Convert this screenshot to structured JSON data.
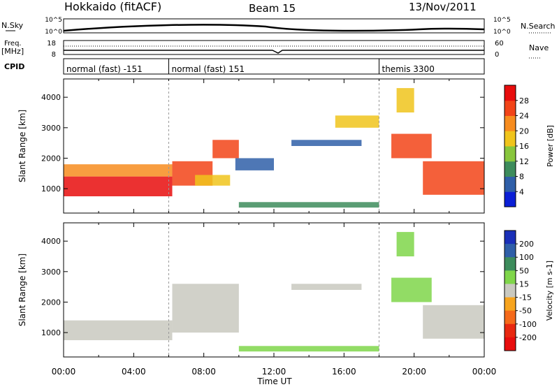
{
  "header": {
    "station": "Hokkaido (fitACF)",
    "beam": "Beam 15",
    "date": "13/Nov/2011"
  },
  "side_labels": {
    "n_sky": "N.Sky",
    "freq_1": "Freq.",
    "freq_2": "[MHz]",
    "cpid": "CPID",
    "n_search": "N.Search",
    "nave": "Nave"
  },
  "strip_ticks": {
    "nsky_top": "10^5",
    "nsky_bottom": "10^0",
    "nsearch_top": "10^5",
    "nsearch_bottom": "10^0",
    "freq_top": "18",
    "freq_bottom": "8",
    "nave_top": "60",
    "nave_bottom": "0"
  },
  "cpid_segments": [
    {
      "label": "normal (fast) -151",
      "start_hour": 0
    },
    {
      "label": "normal (fast) 151",
      "start_hour": 6
    },
    {
      "label": "themis 3300",
      "start_hour": 18
    }
  ],
  "chart_data": [
    {
      "type": "heatmap",
      "quantity": "Power",
      "xlabel": "Time UT",
      "ylabel": "Slant Range [km]",
      "xticks": [
        "00:00",
        "04:00",
        "08:00",
        "12:00",
        "16:00",
        "20:00",
        "00:00"
      ],
      "xlim_hours": [
        0,
        24
      ],
      "yticks": [
        1000,
        2000,
        3000,
        4000
      ],
      "ylim": [
        200,
        4600
      ],
      "colorbar": {
        "label": "Power [dB]",
        "ticks": [
          4,
          8,
          12,
          16,
          20,
          24,
          28
        ],
        "colors": [
          "#0b1fd6",
          "#2f5fa8",
          "#3d8c5c",
          "#88c63d",
          "#f0c41c",
          "#f78c1e",
          "#f24418",
          "#e80d0d"
        ]
      },
      "regions": [
        {
          "t0": 0,
          "t1": 6.2,
          "r0": 750,
          "r1": 1400,
          "value": 28
        },
        {
          "t0": 0,
          "t1": 6.2,
          "r0": 1400,
          "r1": 1800,
          "value": 20
        },
        {
          "t0": 6.2,
          "t1": 8.5,
          "r0": 1100,
          "r1": 1900,
          "value": 26
        },
        {
          "t0": 8.5,
          "t1": 10,
          "r0": 2000,
          "r1": 2600,
          "value": 26
        },
        {
          "t0": 7.5,
          "t1": 9.5,
          "r0": 1100,
          "r1": 1450,
          "value": 16
        },
        {
          "t0": 9.8,
          "t1": 12,
          "r0": 1600,
          "r1": 2000,
          "value": 6
        },
        {
          "t0": 13,
          "t1": 17,
          "r0": 2400,
          "r1": 2600,
          "value": 6
        },
        {
          "t0": 15.5,
          "t1": 18,
          "r0": 3000,
          "r1": 3400,
          "value": 16
        },
        {
          "t0": 10,
          "t1": 18,
          "r0": 380,
          "r1": 560,
          "value": 8
        },
        {
          "t0": 20.5,
          "t1": 24,
          "r0": 800,
          "r1": 1900,
          "value": 26
        },
        {
          "t0": 18.7,
          "t1": 21,
          "r0": 2000,
          "r1": 2800,
          "value": 26
        },
        {
          "t0": 19,
          "t1": 20,
          "r0": 3500,
          "r1": 4300,
          "value": 18
        }
      ]
    },
    {
      "type": "heatmap",
      "quantity": "Velocity",
      "xlabel": "Time UT",
      "ylabel": "Slant Range [km]",
      "xticks": [
        "00:00",
        "04:00",
        "08:00",
        "12:00",
        "16:00",
        "20:00",
        "00:00"
      ],
      "xlim_hours": [
        0,
        24
      ],
      "yticks": [
        1000,
        2000,
        3000,
        4000
      ],
      "ylim": [
        200,
        4600
      ],
      "colorbar": {
        "label": "Velocity [m s-1]",
        "ticks": [
          200,
          100,
          50,
          15,
          -15,
          -50,
          -100,
          -200
        ],
        "colors": [
          "#1a2fb8",
          "#2f5fa8",
          "#3d8c5c",
          "#7fd64a",
          "#c9c9c0",
          "#f7a41e",
          "#f56a1a",
          "#e82810",
          "#e80d0d"
        ]
      },
      "regions": [
        {
          "t0": 0,
          "t1": 6.2,
          "r0": 750,
          "r1": 1400,
          "value": 0
        },
        {
          "t0": 6.2,
          "t1": 10,
          "r0": 1000,
          "r1": 2600,
          "value": 0
        },
        {
          "t0": 13,
          "t1": 17,
          "r0": 2400,
          "r1": 2600,
          "value": 0
        },
        {
          "t0": 10,
          "t1": 18,
          "r0": 380,
          "r1": 560,
          "value": 20
        },
        {
          "t0": 20.5,
          "t1": 24,
          "r0": 800,
          "r1": 1900,
          "value": 0
        },
        {
          "t0": 18.7,
          "t1": 21,
          "r0": 2000,
          "r1": 2800,
          "value": 30
        },
        {
          "t0": 19,
          "t1": 20,
          "r0": 3500,
          "r1": 4300,
          "value": 30
        }
      ]
    }
  ]
}
